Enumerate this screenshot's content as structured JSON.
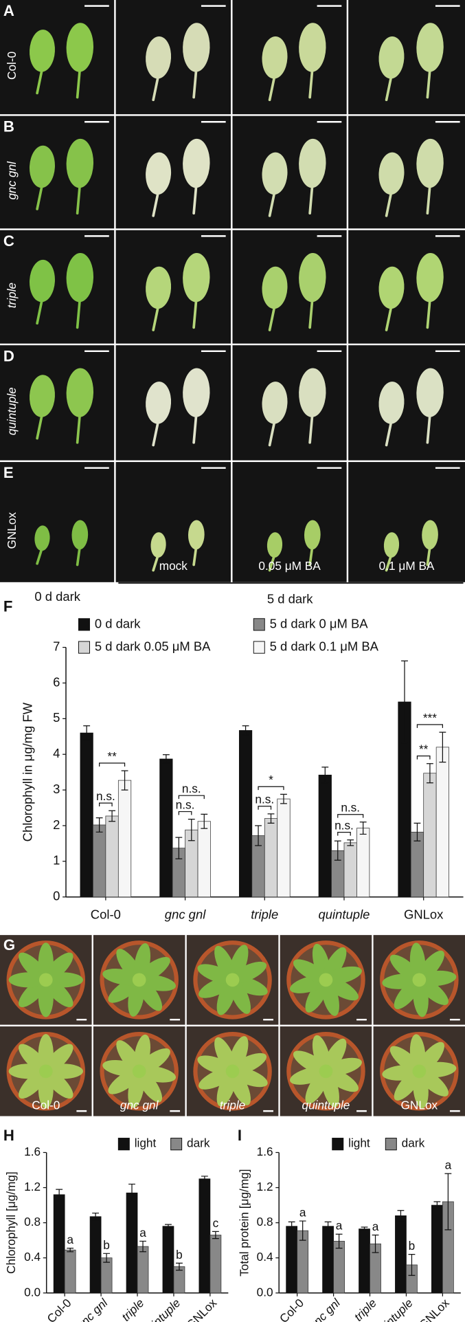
{
  "photo_panels": {
    "letters": [
      "A",
      "B",
      "C",
      "D",
      "E"
    ],
    "genotypes": [
      "Col-0",
      "gnc gnl",
      "triple",
      "quintuple",
      "GNLox"
    ],
    "italic": [
      false,
      true,
      true,
      true,
      false
    ],
    "treatments": [
      "mock",
      "0.05 μM BA",
      "0.1 μM BA"
    ],
    "time_labels": [
      "0 d dark",
      "5 d dark"
    ]
  },
  "rosette_panel": {
    "letter": "G",
    "genotypes": [
      "Col-0",
      "gnc gnl",
      "triple",
      "quintuple",
      "GNLox"
    ],
    "italic": [
      false,
      true,
      true,
      true,
      false
    ]
  },
  "chart_data": [
    {
      "type": "bar",
      "panel_label": "F",
      "y_label": "Chlorophyll in μg/mg FW",
      "categories": [
        "Col-0",
        "gnc gnl",
        "triple",
        "quintuple",
        "GNLox"
      ],
      "italic": [
        false,
        true,
        true,
        true,
        false
      ],
      "series": [
        {
          "name": "0 d dark",
          "color": "#111111",
          "values": [
            4.6,
            3.87,
            4.67,
            3.42,
            5.47
          ],
          "errors": [
            0.2,
            0.12,
            0.13,
            0.22,
            1.15
          ]
        },
        {
          "name": "5 d dark 0 μM BA",
          "color": "#888888",
          "values": [
            2.02,
            1.37,
            1.72,
            1.3,
            1.82
          ],
          "errors": [
            0.2,
            0.3,
            0.28,
            0.27,
            0.25
          ]
        },
        {
          "name": "5 d dark 0.05 μM BA",
          "color": "#d6d6d6",
          "values": [
            2.27,
            1.88,
            2.2,
            1.52,
            3.47
          ],
          "errors": [
            0.15,
            0.3,
            0.13,
            0.08,
            0.27
          ]
        },
        {
          "name": "5 d dark 0.1 μM BA",
          "color": "#f6f6f6",
          "values": [
            3.27,
            2.12,
            2.75,
            1.93,
            4.2
          ],
          "errors": [
            0.27,
            0.2,
            0.13,
            0.17,
            0.42
          ]
        }
      ],
      "significance": [
        [
          "n.s.",
          "**"
        ],
        [
          "n.s.",
          "n.s."
        ],
        [
          "n.s.",
          "*"
        ],
        [
          "n.s.",
          "n.s."
        ],
        [
          "**",
          "***"
        ]
      ],
      "ylim": [
        0,
        7
      ],
      "yticks": [
        0,
        1,
        2,
        3,
        4,
        5,
        6,
        7
      ]
    },
    {
      "type": "bar",
      "panel_label": "H",
      "y_label": "Chlorophyll [μg/mg]",
      "categories": [
        "Col-0",
        "gnc gnl",
        "triple",
        "quintuple",
        "GNLox"
      ],
      "italic": [
        false,
        true,
        true,
        true,
        false
      ],
      "series": [
        {
          "name": "light",
          "color": "#111111",
          "values": [
            1.12,
            0.87,
            1.14,
            0.76,
            1.3
          ],
          "errors": [
            0.06,
            0.04,
            0.1,
            0.02,
            0.03
          ]
        },
        {
          "name": "dark",
          "color": "#888888",
          "values": [
            0.49,
            0.4,
            0.53,
            0.3,
            0.66
          ],
          "errors": [
            0.02,
            0.05,
            0.06,
            0.04,
            0.04
          ],
          "letters": [
            "a",
            "b",
            "a",
            "b",
            "c"
          ]
        }
      ],
      "ylim": [
        0,
        1.6
      ],
      "yticks": [
        {
          "value": 0,
          "label": "0.0"
        },
        0.4,
        0.8,
        1.2,
        1.6
      ]
    },
    {
      "type": "bar",
      "panel_label": "I",
      "y_label": "Total protein [μg/mg]",
      "categories": [
        "Col-0",
        "gnc gnl",
        "triple",
        "quintuple",
        "GNLox"
      ],
      "italic": [
        false,
        true,
        true,
        true,
        false
      ],
      "series": [
        {
          "name": "light",
          "color": "#111111",
          "values": [
            0.76,
            0.76,
            0.73,
            0.88,
            1.0
          ],
          "errors": [
            0.05,
            0.05,
            0.02,
            0.06,
            0.04
          ]
        },
        {
          "name": "dark",
          "color": "#888888",
          "values": [
            0.71,
            0.59,
            0.56,
            0.32,
            1.04
          ],
          "errors": [
            0.11,
            0.08,
            0.1,
            0.12,
            0.32
          ],
          "letters": [
            "a",
            "a",
            "a",
            "b",
            "a"
          ]
        }
      ],
      "ylim": [
        0,
        1.6
      ],
      "yticks": [
        {
          "value": 0,
          "label": "0.0"
        },
        0.4,
        0.8,
        1.2,
        1.6
      ]
    }
  ]
}
